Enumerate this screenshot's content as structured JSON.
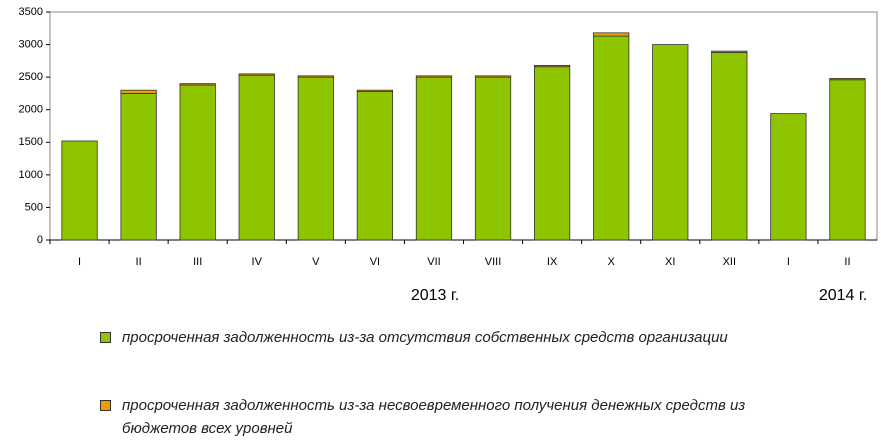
{
  "chart_data": {
    "type": "stacked_bar",
    "categories": [
      "I",
      "II",
      "III",
      "IV",
      "V",
      "VI",
      "VII",
      "VIII",
      "IX",
      "X",
      "XI",
      "XII",
      "I",
      "II"
    ],
    "series": [
      {
        "name": "просроченная задолженность из-за отсутствия собственных средств организации",
        "color": "#8fc400",
        "values": [
          1520,
          2250,
          2380,
          2530,
          2500,
          2280,
          2500,
          2500,
          2660,
          3130,
          3000,
          2880,
          1940,
          2460
        ]
      },
      {
        "name": "просроченная задолженность из-за несвоевременного получения денежных средств из бюджетов всех уровней",
        "color": "#e8a000",
        "values": [
          0,
          50,
          20,
          20,
          20,
          20,
          20,
          20,
          20,
          50,
          0,
          20,
          0,
          20
        ]
      }
    ],
    "year_labels": [
      "2013 г.",
      "2014 г."
    ],
    "ylim": [
      0,
      3500
    ],
    "yticks": [
      0,
      500,
      1000,
      1500,
      2000,
      2500,
      3000,
      3500
    ],
    "grid": false
  }
}
